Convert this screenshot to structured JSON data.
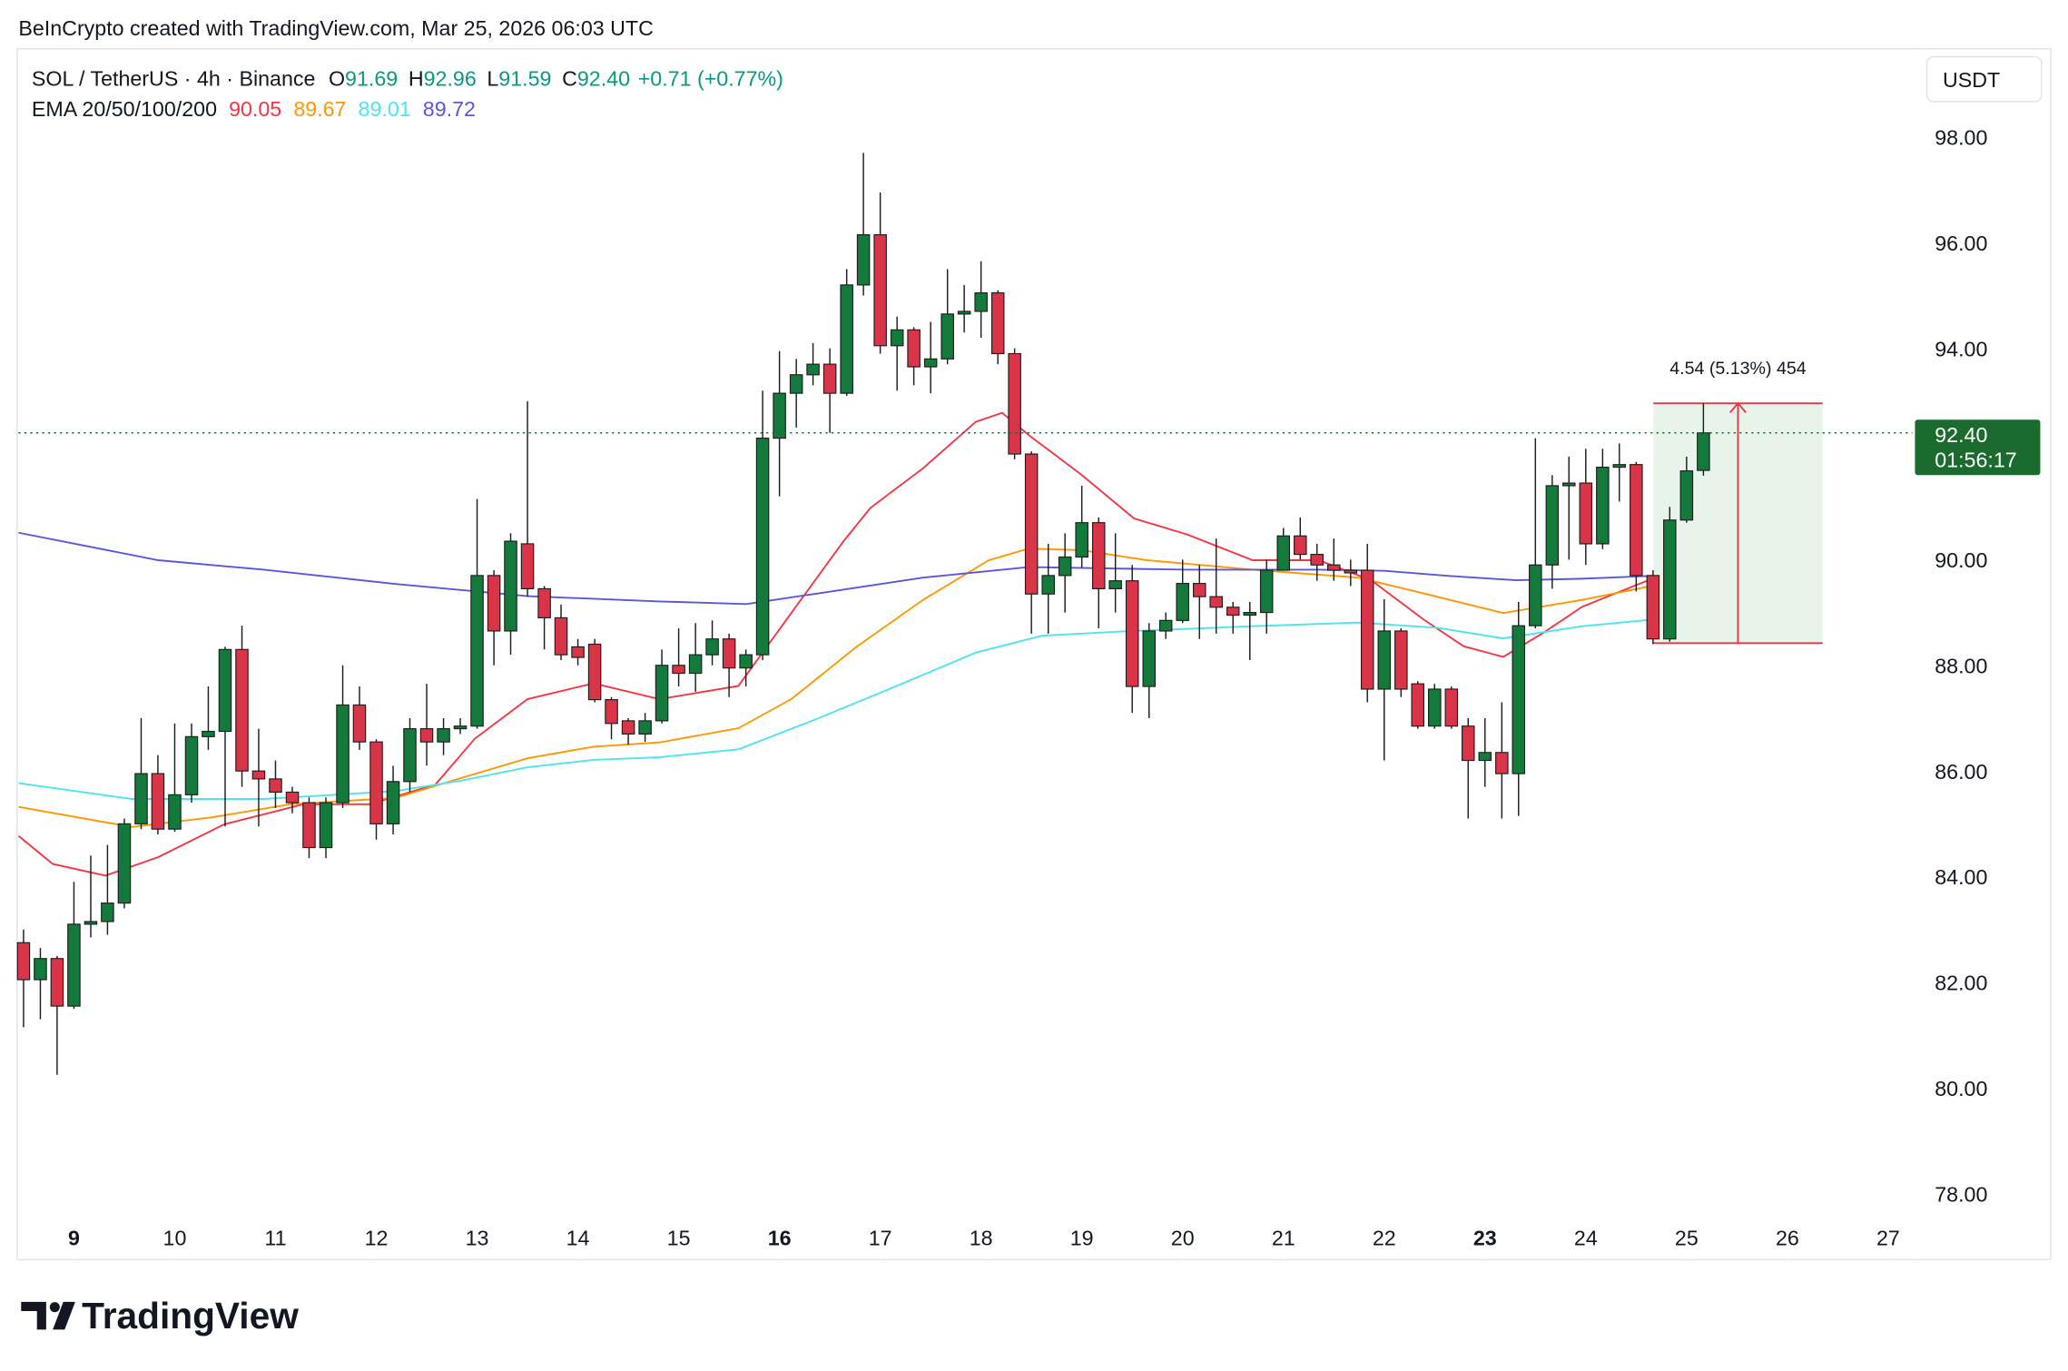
{
  "chart_data": {
    "type": "candlestick",
    "credit": "BeInCrypto created with TradingView.com, Mar 25, 2026 06:03 UTC",
    "header": {
      "symbol": "SOL / TetherUS · 4h · Binance",
      "ohlc": [
        {
          "key": "O",
          "value": "91.69"
        },
        {
          "key": "H",
          "value": "92.96"
        },
        {
          "key": "L",
          "value": "91.59"
        },
        {
          "key": "C",
          "value": "92.40"
        }
      ],
      "change": "+0.71 (+0.77%)",
      "value_color": "#089981",
      "ema_title": "EMA 20/50/100/200"
    },
    "currency": "USDT",
    "logo": "TradingView",
    "up_color": "#137a3b",
    "down_color": "#d93448",
    "border_color": "#1e1e1e",
    "x": [
      8.5,
      8.667,
      8.833,
      9,
      9.167,
      9.333,
      9.5,
      9.667,
      9.833,
      10,
      10.167,
      10.333,
      10.5,
      10.667,
      10.833,
      11,
      11.167,
      11.333,
      11.5,
      11.667,
      11.833,
      12,
      12.167,
      12.333,
      12.5,
      12.667,
      12.833,
      13,
      13.167,
      13.333,
      13.5,
      13.667,
      13.833,
      14,
      14.167,
      14.333,
      14.5,
      14.667,
      14.833,
      15,
      15.167,
      15.333,
      15.5,
      15.667,
      15.833,
      16,
      16.167,
      16.333,
      16.5,
      16.667,
      16.833,
      17,
      17.167,
      17.333,
      17.5,
      17.667,
      17.833,
      18,
      18.167,
      18.333,
      18.5,
      18.667,
      18.833,
      19,
      19.167,
      19.333,
      19.5,
      19.667,
      19.833,
      20,
      20.167,
      20.333,
      20.5,
      20.667,
      20.833,
      21,
      21.167,
      21.333,
      21.5,
      21.667,
      21.833,
      22,
      22.167,
      22.333,
      22.5,
      22.667,
      22.833,
      23,
      23.167,
      23.333,
      23.5,
      23.667,
      23.833,
      24,
      24.167,
      24.333,
      24.5,
      24.667,
      24.833,
      25,
      25.167
    ],
    "open": [
      82.75,
      82.05,
      82.45,
      81.55,
      83.1,
      83.15,
      83.5,
      85.0,
      85.95,
      84.9,
      85.55,
      86.65,
      86.75,
      88.3,
      86.0,
      85.85,
      85.6,
      85.4,
      84.55,
      85.4,
      87.25,
      86.55,
      85.0,
      85.8,
      86.8,
      86.55,
      86.8,
      86.85,
      89.7,
      88.65,
      90.3,
      89.45,
      88.9,
      88.35,
      88.4,
      87.35,
      86.95,
      86.7,
      86.95,
      88.0,
      87.85,
      88.2,
      88.5,
      87.95,
      88.2,
      92.3,
      93.15,
      93.5,
      93.7,
      93.15,
      95.2,
      96.15,
      94.05,
      94.35,
      93.65,
      93.8,
      94.65,
      94.7,
      95.05,
      93.9,
      92.0,
      89.35,
      89.7,
      90.05,
      90.7,
      89.45,
      89.6,
      87.6,
      88.65,
      88.85,
      89.55,
      89.3,
      89.1,
      88.95,
      89.0,
      89.8,
      90.45,
      90.1,
      89.9,
      89.8,
      89.8,
      87.55,
      88.65,
      87.65,
      86.85,
      87.55,
      86.85,
      86.2,
      86.35,
      85.95,
      88.75,
      89.9,
      91.4,
      91.45,
      90.3,
      91.75,
      91.8,
      89.7,
      88.5,
      90.75,
      91.69
    ],
    "high": [
      83.0,
      82.65,
      82.5,
      83.9,
      84.4,
      84.6,
      85.1,
      87.0,
      86.3,
      86.9,
      86.9,
      87.6,
      88.35,
      88.75,
      86.8,
      86.2,
      85.7,
      85.5,
      85.5,
      88.0,
      87.6,
      86.6,
      86.1,
      87.0,
      87.65,
      87.0,
      87.0,
      91.15,
      89.8,
      90.5,
      93.0,
      89.5,
      89.15,
      88.5,
      88.5,
      87.4,
      87.0,
      87.1,
      88.3,
      88.7,
      88.8,
      88.85,
      88.6,
      88.3,
      93.2,
      93.95,
      93.8,
      94.1,
      94.0,
      95.5,
      97.7,
      96.95,
      94.6,
      94.4,
      94.5,
      95.5,
      95.2,
      95.65,
      95.1,
      94.0,
      92.05,
      90.3,
      90.5,
      91.4,
      90.8,
      90.5,
      89.9,
      88.8,
      89.0,
      90.0,
      89.9,
      90.4,
      89.2,
      89.2,
      90.0,
      90.6,
      90.8,
      90.3,
      90.4,
      90.0,
      90.3,
      89.25,
      88.7,
      87.7,
      87.65,
      87.6,
      87.0,
      87.0,
      87.3,
      89.2,
      92.3,
      91.6,
      91.95,
      92.1,
      92.1,
      92.2,
      91.85,
      89.8,
      91.0,
      91.95,
      92.96
    ],
    "low": [
      81.15,
      81.3,
      80.25,
      81.5,
      82.85,
      82.9,
      83.4,
      84.9,
      84.8,
      84.85,
      85.4,
      86.4,
      84.95,
      85.7,
      84.95,
      85.3,
      85.2,
      84.35,
      84.35,
      85.3,
      86.4,
      84.7,
      84.8,
      85.6,
      86.1,
      86.3,
      86.7,
      86.8,
      88.0,
      88.2,
      89.3,
      88.3,
      88.1,
      88.0,
      87.3,
      86.6,
      86.5,
      86.55,
      86.9,
      87.6,
      87.5,
      88.0,
      87.4,
      87.6,
      88.1,
      91.2,
      92.5,
      93.3,
      92.4,
      93.1,
      95.0,
      93.9,
      93.2,
      93.3,
      93.15,
      93.7,
      94.3,
      94.2,
      93.7,
      91.9,
      88.6,
      88.6,
      89.0,
      89.85,
      88.7,
      89.0,
      87.1,
      87.0,
      88.5,
      88.8,
      88.5,
      88.6,
      88.6,
      88.1,
      88.6,
      89.8,
      90.0,
      89.6,
      89.6,
      89.5,
      87.3,
      86.2,
      87.4,
      86.8,
      86.8,
      86.8,
      85.1,
      85.7,
      85.1,
      85.15,
      88.7,
      89.45,
      90.0,
      89.9,
      90.2,
      91.1,
      89.4,
      88.4,
      88.45,
      90.7,
      91.59
    ],
    "close": [
      82.05,
      82.45,
      81.55,
      83.1,
      83.15,
      83.5,
      85.0,
      85.95,
      84.9,
      85.55,
      86.65,
      86.75,
      88.3,
      86.0,
      85.85,
      85.6,
      85.4,
      84.55,
      85.4,
      87.25,
      86.55,
      85.0,
      85.8,
      86.8,
      86.55,
      86.8,
      86.85,
      89.7,
      88.65,
      90.35,
      89.45,
      88.9,
      88.2,
      88.15,
      87.35,
      86.9,
      86.7,
      86.95,
      88.0,
      87.85,
      88.2,
      88.5,
      87.95,
      88.2,
      92.3,
      93.15,
      93.5,
      93.7,
      93.15,
      95.2,
      96.15,
      94.05,
      94.35,
      93.65,
      93.8,
      94.65,
      94.7,
      95.05,
      93.9,
      92.0,
      89.35,
      89.7,
      90.05,
      90.7,
      89.45,
      89.6,
      87.6,
      88.65,
      88.85,
      89.55,
      89.3,
      89.1,
      88.95,
      89.0,
      89.8,
      90.45,
      90.1,
      89.9,
      89.8,
      89.75,
      87.55,
      88.65,
      87.55,
      86.85,
      87.55,
      86.85,
      86.2,
      86.35,
      85.95,
      88.75,
      89.9,
      91.4,
      91.45,
      90.3,
      91.75,
      91.8,
      89.7,
      88.5,
      90.75,
      91.68,
      92.4
    ],
    "series": [
      {
        "color": "#f23645",
        "x": [
          8.451,
          8.791,
          9.314,
          9.837,
          10.491,
          11.276,
          11.93,
          12.585,
          12.977,
          13.5,
          14.154,
          14.809,
          15.593,
          16.117,
          16.64,
          16.902,
          17.425,
          17.948,
          18.21,
          18.472,
          18.995,
          19.518,
          20.041,
          20.696,
          21.35,
          21.873,
          22.396,
          22.789,
          23.181,
          23.574,
          23.966,
          24.62,
          25.167
        ],
        "values": [
          84.77,
          84.24,
          84.02,
          84.37,
          84.99,
          85.37,
          85.37,
          85.74,
          86.61,
          87.36,
          87.66,
          87.36,
          87.61,
          88.99,
          90.36,
          90.98,
          91.73,
          92.61,
          92.78,
          92.36,
          91.61,
          90.78,
          90.48,
          89.99,
          89.99,
          89.61,
          88.86,
          88.36,
          88.16,
          88.61,
          89.11,
          89.61,
          90.05
        ]
      },
      {
        "color": "#ff9800",
        "x": [
          8.451,
          9.576,
          10.361,
          11.145,
          12.192,
          12.846,
          13.5,
          14.154,
          14.809,
          15.593,
          16.117,
          16.771,
          17.425,
          18.079,
          18.472,
          18.995,
          19.649,
          20.696,
          21.742,
          22.396,
          23.181,
          23.966,
          24.62,
          25.167
        ],
        "values": [
          85.32,
          84.94,
          85.12,
          85.37,
          85.49,
          85.87,
          86.24,
          86.46,
          86.54,
          86.81,
          87.36,
          88.36,
          89.24,
          89.99,
          90.21,
          90.18,
          89.99,
          89.81,
          89.66,
          89.36,
          88.99,
          89.24,
          89.49,
          89.67
        ]
      },
      {
        "color": "#4fe3ee",
        "x": [
          8.451,
          9.576,
          10.884,
          12.192,
          12.846,
          13.5,
          14.154,
          14.809,
          15.593,
          16.378,
          17.163,
          17.948,
          18.602,
          19.387,
          20.696,
          21.742,
          22.527,
          23.181,
          23.966,
          24.62,
          25.167
        ],
        "values": [
          85.77,
          85.47,
          85.47,
          85.62,
          85.82,
          86.07,
          86.21,
          86.26,
          86.41,
          86.99,
          87.61,
          88.24,
          88.56,
          88.64,
          88.74,
          88.81,
          88.71,
          88.51,
          88.74,
          88.86,
          89.01
        ]
      },
      {
        "color": "#5c56d9",
        "x": [
          8.451,
          9.837,
          10.884,
          12.192,
          13.5,
          14.809,
          15.672,
          16.378,
          17.425,
          18.472,
          20.041,
          21.35,
          22.004,
          22.658,
          23.312,
          23.966,
          24.62,
          25.167
        ],
        "values": [
          90.51,
          89.99,
          89.81,
          89.54,
          89.31,
          89.21,
          89.16,
          89.36,
          89.66,
          89.86,
          89.81,
          89.81,
          89.79,
          89.69,
          89.61,
          89.64,
          89.69,
          89.72
        ]
      }
    ],
    "measure": {
      "label": "4.54 (5.13%) 454",
      "x": [
        24.67,
        26.35
      ],
      "y": [
        88.42,
        92.96
      ],
      "fill": "#e8f4e9",
      "line_color": "#e53945"
    },
    "price_label": "92.40",
    "countdown": "01:56:17",
    "price_label_color": "#1a6b2d",
    "price_line_color": "#1a6b2d",
    "xlim": [
      8.45,
      27.24
    ],
    "xticks": [
      9,
      10,
      11,
      12,
      13,
      14,
      15,
      16,
      17,
      18,
      19,
      20,
      21,
      22,
      23,
      24,
      25,
      26,
      27
    ],
    "week_start_ticks": [
      9,
      16,
      23
    ],
    "ylim": [
      76.75,
      99.67
    ],
    "yticks": [
      {
        "value": 78,
        "label": "78.00"
      },
      {
        "value": 80,
        "label": "80.00"
      },
      {
        "value": 82,
        "label": "82.00"
      },
      {
        "value": 84,
        "label": "84.00"
      },
      {
        "value": 86,
        "label": "86.00"
      },
      {
        "value": 88,
        "label": "88.00"
      },
      {
        "value": 90,
        "label": "90.00"
      },
      {
        "value": 92,
        "label": "92.00"
      },
      {
        "value": 94,
        "label": "94.00"
      },
      {
        "value": 96,
        "label": "96.00"
      },
      {
        "value": 98,
        "label": "98.00"
      }
    ],
    "grid": false
  }
}
